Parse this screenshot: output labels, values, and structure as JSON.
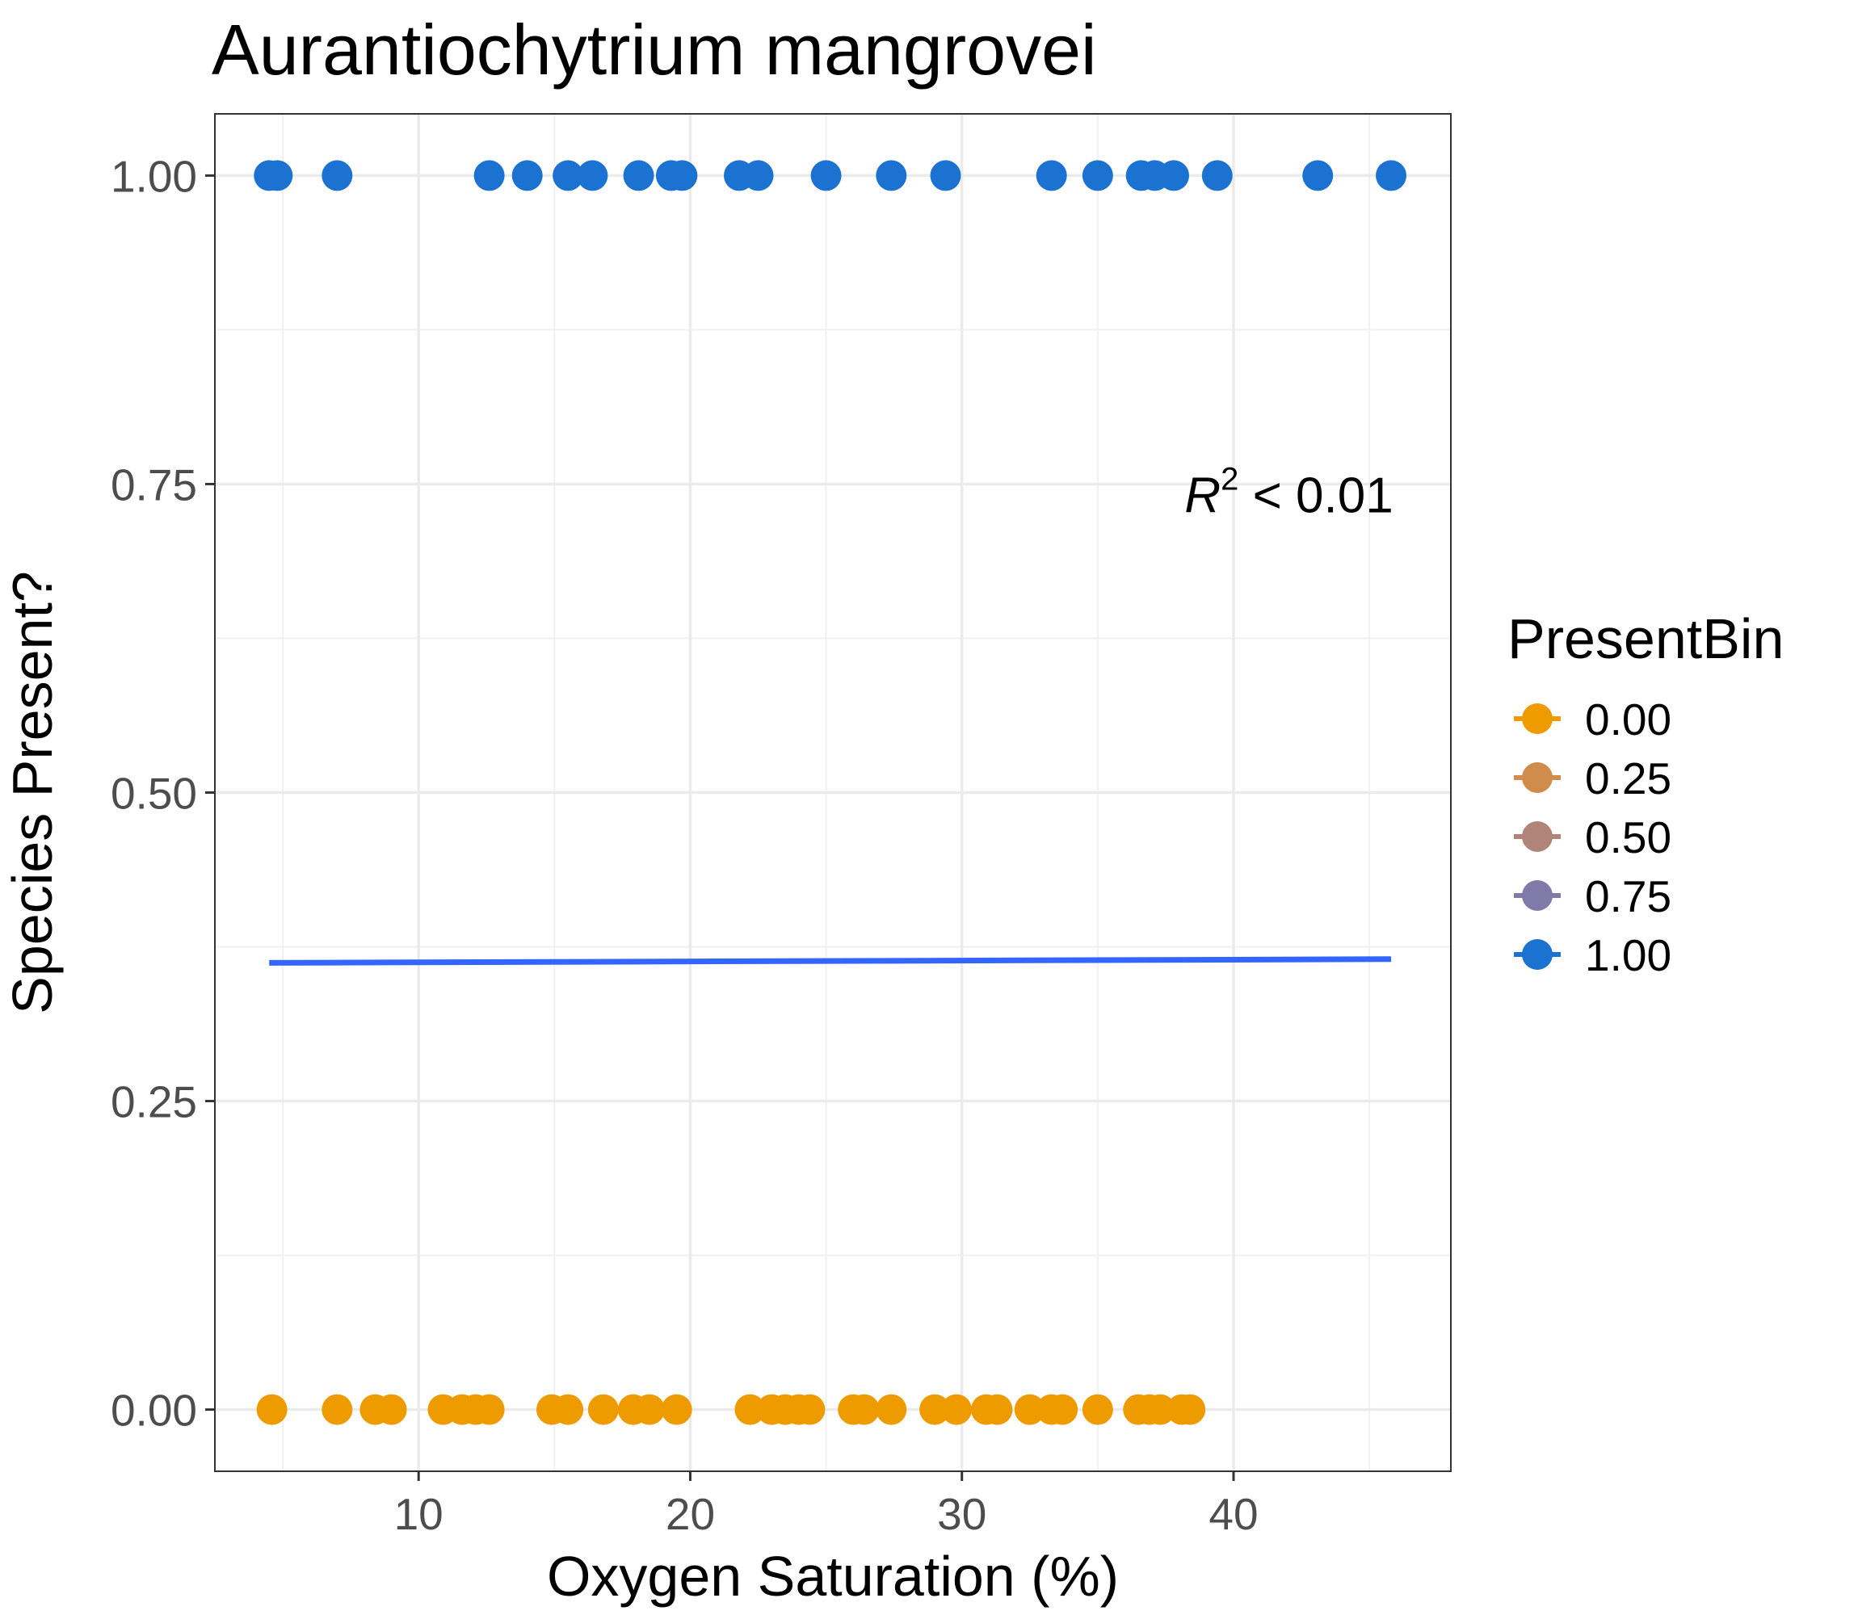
{
  "chart_data": {
    "type": "scatter",
    "title": "Aurantiochytrium mangrovei",
    "xlabel": "Oxygen Saturation (%)",
    "ylabel": "Species Present?",
    "xlim": [
      2.5,
      48
    ],
    "ylim": [
      -0.05,
      1.05
    ],
    "x_ticks": [
      10,
      20,
      30,
      40
    ],
    "x_tick_labels": [
      "10",
      "20",
      "30",
      "40"
    ],
    "y_ticks": [
      0,
      0.25,
      0.5,
      0.75,
      1.0
    ],
    "y_tick_labels": [
      "0.00",
      "0.25",
      "0.50",
      "0.75",
      "1.00"
    ],
    "grid": true,
    "legend": {
      "title": "PresentBin",
      "position": "right",
      "entries": [
        {
          "label": "0.00",
          "color": "#EE9B00"
        },
        {
          "label": "0.25",
          "color": "#D08C4A"
        },
        {
          "label": "0.50",
          "color": "#B08478"
        },
        {
          "label": "0.75",
          "color": "#7F7AA8"
        },
        {
          "label": "1.00",
          "color": "#1B72D0"
        }
      ]
    },
    "series": [
      {
        "color": "#1B72D0",
        "y": 1.0,
        "x": [
          4.5,
          4.8,
          7.0,
          12.6,
          14.0,
          15.5,
          16.4,
          18.1,
          19.3,
          19.7,
          21.8,
          22.5,
          25.0,
          27.4,
          29.4,
          33.3,
          35.0,
          36.6,
          37.1,
          37.8,
          39.4,
          43.1,
          45.8
        ]
      },
      {
        "color": "#EE9B00",
        "y": 0.0,
        "x": [
          4.6,
          7.0,
          8.4,
          9.0,
          10.9,
          11.6,
          12.1,
          12.6,
          14.9,
          15.5,
          16.8,
          17.9,
          18.5,
          19.5,
          22.2,
          23.0,
          23.5,
          24.0,
          24.4,
          26.0,
          26.4,
          27.4,
          29.0,
          29.8,
          30.9,
          31.3,
          32.5,
          33.3,
          33.7,
          35.0,
          36.5,
          36.9,
          37.3,
          38.1,
          38.4
        ]
      }
    ],
    "fit_line": {
      "color": "#3366FF",
      "x": [
        4.5,
        45.8
      ],
      "y": [
        0.362,
        0.365
      ]
    },
    "annotation": {
      "text": "R",
      "superscript": "2",
      "rest": " < 0.01",
      "x": 43.5,
      "y": 0.74
    }
  }
}
